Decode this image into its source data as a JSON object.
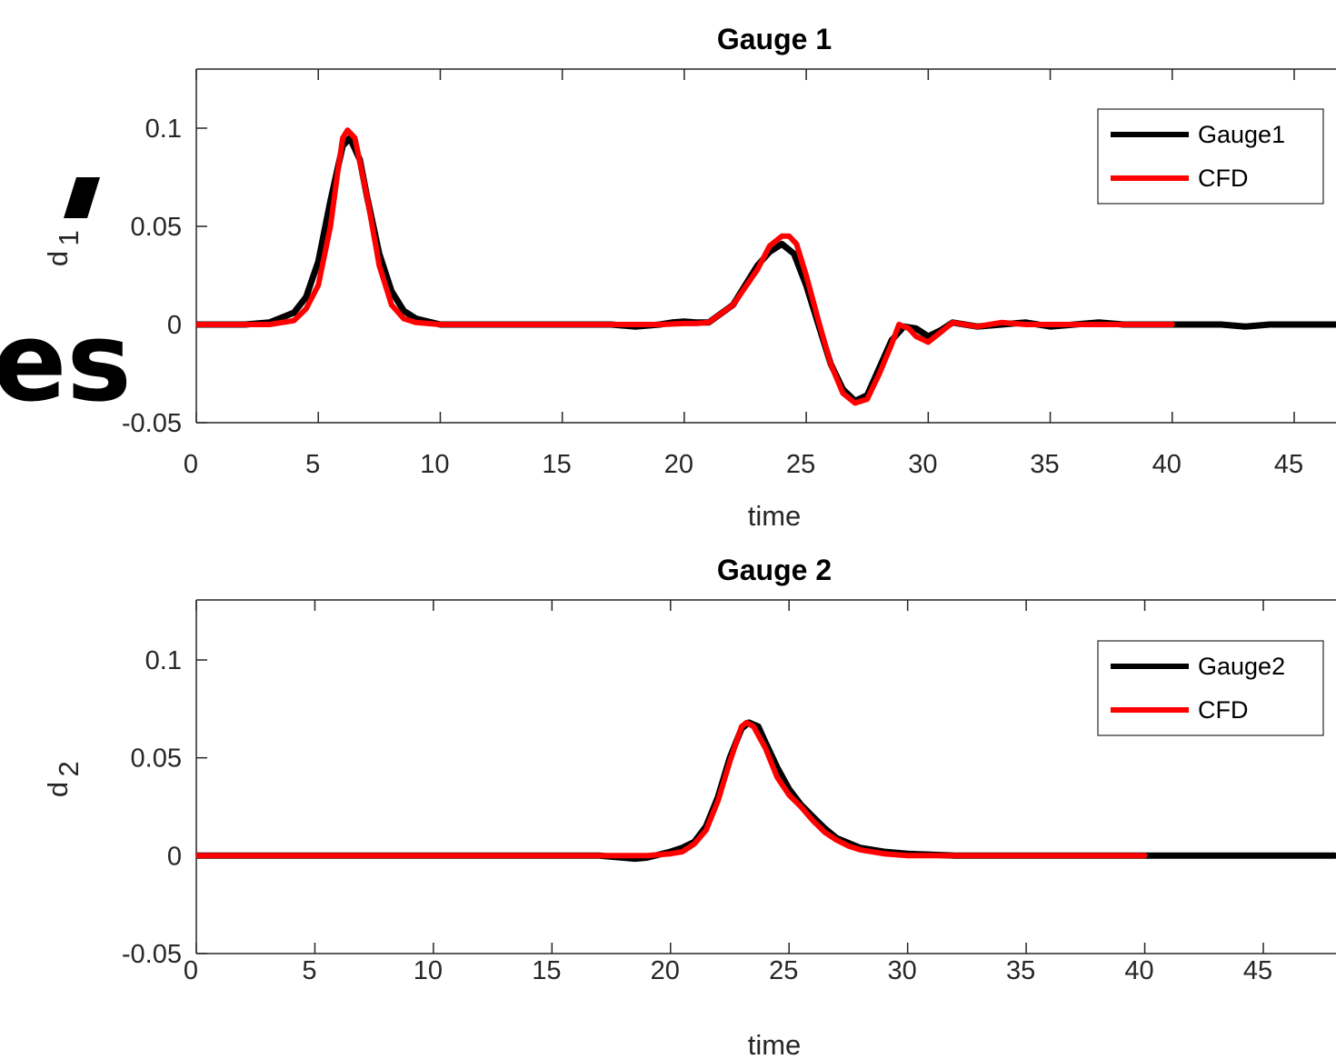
{
  "background_text": {
    "fragment_1": "es"
  },
  "chart_data": [
    {
      "type": "line",
      "title": "Gauge 1",
      "xlabel": "time",
      "ylabel": "d",
      "ylabel_sub": "1",
      "xlim": [
        0,
        48
      ],
      "ylim": [
        -0.05,
        0.13
      ],
      "xticks": [
        0,
        5,
        10,
        15,
        20,
        25,
        30,
        35,
        40,
        45
      ],
      "yticks": [
        -0.05,
        0,
        0.05,
        0.1
      ],
      "ytick_labels": [
        "-0.05",
        "0",
        "0.05",
        "0.1"
      ],
      "legend": {
        "placement": "top-right"
      },
      "series": [
        {
          "name": "Gauge1",
          "color": "#000000",
          "x": [
            -0.5,
            0,
            2,
            3,
            4,
            4.5,
            5,
            5.5,
            6,
            6.3,
            6.7,
            7,
            7.5,
            8,
            8.5,
            9,
            10,
            12,
            15,
            17,
            18,
            19,
            19.5,
            20,
            20.5,
            21,
            22,
            23,
            23.5,
            24,
            24.5,
            25,
            25.5,
            26,
            26.5,
            27,
            27.5,
            28,
            28.5,
            29,
            29.5,
            30,
            30.5,
            31,
            31.5,
            32,
            33,
            34,
            35,
            36,
            37,
            38,
            39,
            40,
            41,
            42,
            43,
            44,
            45,
            46,
            47,
            48
          ],
          "y": [
            0,
            0,
            0,
            0.001,
            0.006,
            0.014,
            0.032,
            0.063,
            0.091,
            0.095,
            0.084,
            0.065,
            0.036,
            0.017,
            0.007,
            0.003,
            0,
            0,
            0,
            0,
            -0.001,
            0,
            0.001,
            0.0015,
            0.001,
            0.001,
            0.01,
            0.03,
            0.037,
            0.041,
            0.036,
            0.02,
            0,
            -0.02,
            -0.033,
            -0.039,
            -0.036,
            -0.022,
            -0.008,
            -0.001,
            -0.002,
            -0.006,
            -0.003,
            0.001,
            0,
            -0.001,
            0,
            0.001,
            -0.001,
            0,
            0.001,
            0,
            0,
            0,
            0,
            0,
            -0.001,
            0,
            0,
            0,
            0,
            0
          ]
        },
        {
          "name": "CFD",
          "color": "#ff0000",
          "x": [
            0,
            2,
            3,
            4,
            4.5,
            5,
            5.5,
            5.8,
            6,
            6.2,
            6.5,
            7,
            7.5,
            8,
            8.5,
            9,
            10,
            12,
            15,
            17,
            18,
            19,
            20,
            20.5,
            21,
            22,
            23,
            23.5,
            24,
            24.3,
            24.6,
            25,
            25.5,
            26,
            26.5,
            27,
            27.5,
            28,
            28.5,
            28.8,
            29.2,
            29.5,
            30,
            30.5,
            31,
            31.5,
            32,
            33,
            34,
            35,
            36,
            37,
            38,
            39,
            40
          ],
          "y": [
            0,
            0,
            0,
            0.002,
            0.008,
            0.02,
            0.05,
            0.078,
            0.095,
            0.099,
            0.095,
            0.065,
            0.03,
            0.01,
            0.003,
            0.001,
            0,
            0,
            0,
            0,
            0,
            0,
            0.0005,
            0.0005,
            0.001,
            0.01,
            0.028,
            0.04,
            0.045,
            0.045,
            0.041,
            0.025,
            0.002,
            -0.02,
            -0.035,
            -0.04,
            -0.038,
            -0.025,
            -0.01,
            0,
            -0.002,
            -0.006,
            -0.009,
            -0.004,
            0.001,
            0,
            -0.001,
            0.001,
            0,
            0,
            0,
            0,
            0,
            0,
            0
          ]
        }
      ]
    },
    {
      "type": "line",
      "title": "Gauge 2",
      "xlabel": "time",
      "ylabel": "d",
      "ylabel_sub": "2",
      "xlim": [
        0,
        48
      ],
      "ylim": [
        -0.05,
        0.13
      ],
      "xticks": [
        0,
        5,
        10,
        15,
        20,
        25,
        30,
        35,
        40,
        45
      ],
      "yticks": [
        -0.05,
        0,
        0.05,
        0.1
      ],
      "ytick_labels": [
        "-0.05",
        "0",
        "0.05",
        "0.1"
      ],
      "legend": {
        "placement": "top-right"
      },
      "series": [
        {
          "name": "Gauge2",
          "color": "#000000",
          "x": [
            -0.5,
            0,
            5,
            10,
            15,
            17,
            18,
            18.5,
            19,
            20,
            20.5,
            21,
            21.5,
            22,
            22.5,
            23,
            23.3,
            23.7,
            24,
            24.5,
            25,
            25.5,
            26,
            26.5,
            27,
            28,
            29,
            30,
            31,
            32,
            33,
            34,
            35,
            36,
            37,
            38,
            39,
            40,
            41,
            42,
            43,
            44,
            45,
            46,
            47,
            48
          ],
          "y": [
            0,
            0,
            0,
            0,
            0,
            0,
            -0.001,
            -0.0015,
            -0.001,
            0.002,
            0.004,
            0.007,
            0.015,
            0.03,
            0.05,
            0.065,
            0.068,
            0.066,
            0.058,
            0.045,
            0.034,
            0.026,
            0.02,
            0.014,
            0.009,
            0.004,
            0.002,
            0.001,
            0.0005,
            0,
            0,
            0,
            0,
            0,
            0,
            0,
            0,
            0,
            0,
            0,
            0,
            0,
            0,
            0,
            0,
            0
          ],
          "note_hidden": false
        },
        {
          "name": "CFD",
          "color": "#ff0000",
          "x": [
            0,
            5,
            10,
            15,
            17,
            18,
            19,
            20,
            20.5,
            21,
            21.5,
            22,
            22.5,
            23,
            23.2,
            23.5,
            24,
            24.5,
            25,
            25.5,
            26,
            26.5,
            27,
            27.5,
            28,
            29,
            30,
            31,
            32,
            33,
            34,
            35,
            36,
            37,
            38,
            39,
            40
          ],
          "y": [
            0,
            0,
            0,
            0,
            0,
            0,
            0,
            0.001,
            0.002,
            0.006,
            0.013,
            0.028,
            0.048,
            0.066,
            0.068,
            0.066,
            0.055,
            0.04,
            0.031,
            0.025,
            0.018,
            0.012,
            0.008,
            0.005,
            0.003,
            0.001,
            0,
            0,
            0,
            0,
            0,
            0,
            0,
            0,
            0,
            0,
            0
          ]
        }
      ]
    }
  ]
}
